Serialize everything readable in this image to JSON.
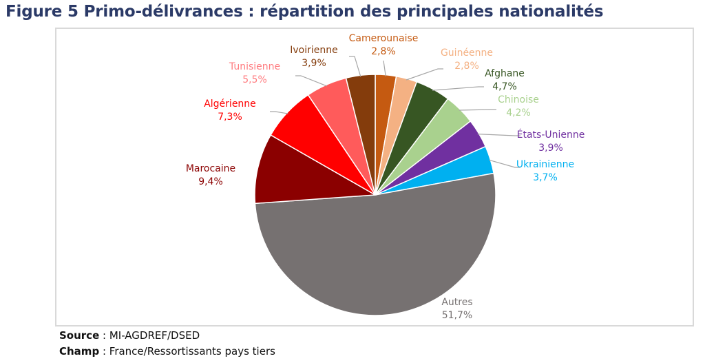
{
  "title": "Figure 5 Primo-délivrances : répartition des principales nationalités",
  "chart_data": {
    "type": "pie",
    "start_angle": "top, clockwise",
    "categories": [
      "Camerounaise",
      "Guinéenne",
      "Afghane",
      "Chinoise",
      "États-Unienne",
      "Ukrainienne",
      "Autres",
      "Marocaine",
      "Algérienne",
      "Tunisienne",
      "Ivoirienne"
    ],
    "values": [
      2.8,
      2.8,
      4.7,
      4.2,
      3.9,
      3.7,
      51.7,
      9.4,
      7.3,
      5.5,
      3.9
    ],
    "labels": [
      "2,8%",
      "2,8%",
      "4,7%",
      "4,2%",
      "3,9%",
      "3,7%",
      "51,7%",
      "9,4%",
      "7,3%",
      "5,5%",
      "3,9%"
    ],
    "colors": [
      "#C55A11",
      "#F4B183",
      "#375623",
      "#A9D18E",
      "#7030A0",
      "#00B0F0",
      "#767171",
      "#8B0000",
      "#FF0000",
      "#FF5B5B",
      "#843C0C"
    ],
    "label_colors": [
      "#C55A11",
      "#F4B183",
      "#375623",
      "#A9D18E",
      "#7030A0",
      "#00B0F0",
      "#767171",
      "#8B0000",
      "#FF0000",
      "#FF7C80",
      "#843C0C"
    ]
  },
  "footer": {
    "source_label": "Source",
    "source_value": " : MI-AGDREF/DSED",
    "scope_label": "Champ",
    "scope_value": " : France/Ressortissants pays tiers"
  }
}
